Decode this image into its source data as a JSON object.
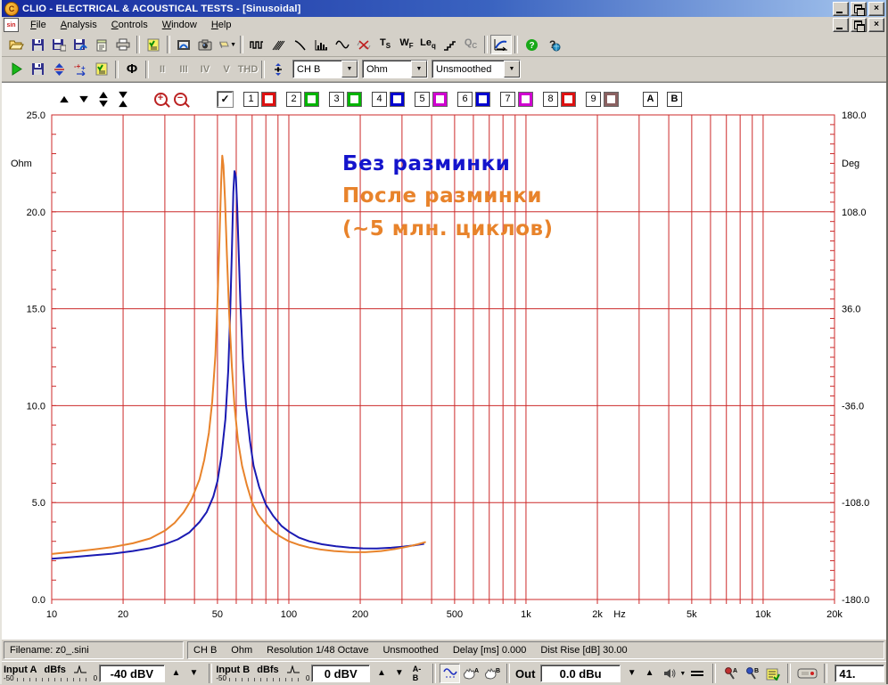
{
  "window": {
    "title": "CLIO - ELECTRICAL & ACOUSTICAL TESTS - [Sinusoidal]"
  },
  "icons": {
    "close": "×",
    "check": "✓",
    "dropdown": "▼",
    "phase": "Φ",
    "divide": "÷",
    "help": "?",
    "logo": "C",
    "mdi_doc": "sin"
  },
  "menu": {
    "items": [
      "File",
      "Analysis",
      "Controls",
      "Window",
      "Help"
    ]
  },
  "toolbar_main": {
    "analyses": [
      {
        "main": "T",
        "sub": "S"
      },
      {
        "main": "W",
        "sub": "F"
      },
      {
        "main": "Le",
        "sub": "q"
      },
      {
        "main": "Q",
        "sub": "C"
      }
    ]
  },
  "toolbar_sin": {
    "harmonics": [
      "II",
      "III",
      "IV",
      "V",
      "THD"
    ],
    "channel": "CH B",
    "unit": "Ohm",
    "smoothing": "Unsmoothed"
  },
  "graph_toolbar": {
    "curves": [
      {
        "label": "1",
        "color": "#dd1111"
      },
      {
        "label": "2",
        "color": "#00b400"
      },
      {
        "label": "3",
        "color": "#00b400"
      },
      {
        "label": "4",
        "color": "#0000d0"
      },
      {
        "label": "5",
        "color": "#d000d0"
      },
      {
        "label": "6",
        "color": "#0000d0"
      },
      {
        "label": "7",
        "color": "#d000d0"
      },
      {
        "label": "8",
        "color": "#dd1111"
      },
      {
        "label": "9",
        "color": "#8a6060"
      }
    ],
    "overlay_a": "A",
    "overlay_b": "B"
  },
  "chart_data": {
    "type": "line",
    "x_scale": "log",
    "x_range": [
      10,
      20000
    ],
    "xlabel": "Hz",
    "ylabel_left": "Ohm",
    "ylabel_right": "Deg",
    "y_left_range": [
      0,
      25
    ],
    "y_right_range": [
      -180,
      180
    ],
    "grid": true,
    "grid_color": "#cc2a2a",
    "y_left_ticks": [
      {
        "v": 25,
        "label": "25.0"
      },
      {
        "v": 20,
        "label": "20.0"
      },
      {
        "v": 15,
        "label": "15.0"
      },
      {
        "v": 10,
        "label": "10.0"
      },
      {
        "v": 5,
        "label": "5.0"
      },
      {
        "v": 0,
        "label": "0.0"
      }
    ],
    "y_right_ticks": [
      {
        "v": 25,
        "label": "180.0"
      },
      {
        "v": 20,
        "label": "108.0"
      },
      {
        "v": 15,
        "label": "36.0"
      },
      {
        "v": 10,
        "label": "-36.0"
      },
      {
        "v": 5,
        "label": "-108.0"
      },
      {
        "v": 0,
        "label": "-180.0"
      }
    ],
    "x_ticks": [
      {
        "f": 10,
        "label": "10"
      },
      {
        "f": 20,
        "label": "20"
      },
      {
        "f": 50,
        "label": "50"
      },
      {
        "f": 100,
        "label": "100"
      },
      {
        "f": 200,
        "label": "200"
      },
      {
        "f": 500,
        "label": "500"
      },
      {
        "f": 1000,
        "label": "1k"
      },
      {
        "f": 2000,
        "label": "2k"
      },
      {
        "f": 5000,
        "label": "5k"
      },
      {
        "f": 10000,
        "label": "10k"
      },
      {
        "f": 20000,
        "label": "20k"
      }
    ],
    "series": [
      {
        "name": "Без разминки",
        "color": "#1a1ab2",
        "points": [
          [
            10,
            2.1
          ],
          [
            12,
            2.18
          ],
          [
            15,
            2.28
          ],
          [
            18,
            2.36
          ],
          [
            22,
            2.5
          ],
          [
            26,
            2.65
          ],
          [
            30,
            2.85
          ],
          [
            34,
            3.1
          ],
          [
            38,
            3.45
          ],
          [
            42,
            4.0
          ],
          [
            45,
            4.5
          ],
          [
            48,
            5.3
          ],
          [
            50,
            6.1
          ],
          [
            52,
            7.4
          ],
          [
            54,
            9.3
          ],
          [
            55.5,
            11.8
          ],
          [
            56.5,
            14.5
          ],
          [
            57.5,
            18.0
          ],
          [
            58.3,
            21.0
          ],
          [
            59,
            22.1
          ],
          [
            59.8,
            21.8
          ],
          [
            60.6,
            20.2
          ],
          [
            61.5,
            17.8
          ],
          [
            62.5,
            15.2
          ],
          [
            64,
            12.4
          ],
          [
            66,
            10.0
          ],
          [
            68.5,
            8.2
          ],
          [
            71,
            6.9
          ],
          [
            75,
            5.8
          ],
          [
            80,
            4.9
          ],
          [
            86,
            4.3
          ],
          [
            93,
            3.8
          ],
          [
            100,
            3.5
          ],
          [
            110,
            3.2
          ],
          [
            122,
            3.0
          ],
          [
            138,
            2.85
          ],
          [
            158,
            2.75
          ],
          [
            180,
            2.68
          ],
          [
            205,
            2.64
          ],
          [
            235,
            2.63
          ],
          [
            270,
            2.67
          ],
          [
            305,
            2.73
          ],
          [
            340,
            2.8
          ],
          [
            372,
            2.87
          ]
        ]
      },
      {
        "name": "После разминки (~5 млн. циклов)",
        "color": "#e8832b",
        "points": [
          [
            10,
            2.35
          ],
          [
            12,
            2.45
          ],
          [
            15,
            2.58
          ],
          [
            18,
            2.7
          ],
          [
            22,
            2.9
          ],
          [
            26,
            3.15
          ],
          [
            30,
            3.55
          ],
          [
            33,
            3.95
          ],
          [
            36,
            4.5
          ],
          [
            39,
            5.2
          ],
          [
            42,
            6.2
          ],
          [
            44,
            7.2
          ],
          [
            46,
            8.6
          ],
          [
            47.5,
            10.2
          ],
          [
            49,
            12.6
          ],
          [
            50,
            15.3
          ],
          [
            51,
            18.6
          ],
          [
            51.8,
            21.5
          ],
          [
            52.4,
            22.9
          ],
          [
            53,
            22.4
          ],
          [
            53.8,
            20.6
          ],
          [
            54.8,
            17.8
          ],
          [
            56,
            14.8
          ],
          [
            57.5,
            12.0
          ],
          [
            59,
            10.0
          ],
          [
            61,
            8.2
          ],
          [
            63.5,
            6.9
          ],
          [
            66.5,
            5.9
          ],
          [
            70,
            5.0
          ],
          [
            74,
            4.4
          ],
          [
            79,
            3.95
          ],
          [
            85,
            3.55
          ],
          [
            92,
            3.25
          ],
          [
            100,
            3.0
          ],
          [
            110,
            2.82
          ],
          [
            122,
            2.68
          ],
          [
            136,
            2.58
          ],
          [
            155,
            2.5
          ],
          [
            180,
            2.45
          ],
          [
            210,
            2.44
          ],
          [
            245,
            2.5
          ],
          [
            280,
            2.6
          ],
          [
            315,
            2.72
          ],
          [
            350,
            2.85
          ],
          [
            378,
            2.97
          ]
        ]
      }
    ],
    "annotations": [
      {
        "text": "Без разминки",
        "color": "#1414cc"
      },
      {
        "text": "После разминки",
        "color": "#e8832b"
      },
      {
        "text": "(~5 млн. циклов)",
        "color": "#e8832b"
      }
    ]
  },
  "status_bar": {
    "filename": "Filename: z0_.sini",
    "segments": [
      "CH B",
      "Ohm",
      "Resolution 1/48 Octave",
      "Unsmoothed",
      "Delay [ms] 0.000",
      "Dist Rise [dB] 30.00"
    ]
  },
  "bottom_bar": {
    "input_a": {
      "label": "Input A",
      "unit": "dBfs",
      "scale_min": "-50",
      "scale_max": "0",
      "value": "-40 dBV"
    },
    "input_b": {
      "label": "Input B",
      "unit": "dBfs",
      "scale_min": "-50",
      "scale_max": "0",
      "value": "0 dBV"
    },
    "ab": "A-B",
    "out_label": "Out",
    "out_value": "0.0 dBu",
    "sample_rate": "41."
  }
}
